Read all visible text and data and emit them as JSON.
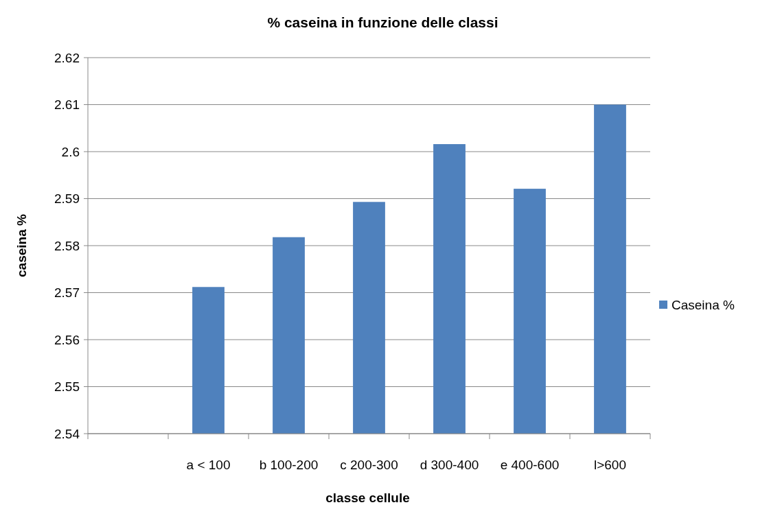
{
  "chart_data": {
    "type": "bar",
    "title": "% caseina in funzione delle classi",
    "xlabel": "classe cellule",
    "ylabel": "caseina %",
    "categories": [
      null,
      "a < 100",
      "b 100-200",
      "c 200-300",
      "d 300-400",
      "e 400-600",
      "l>600"
    ],
    "series": [
      {
        "name": "Caseina %",
        "color": "#4f81bd",
        "values": [
          null,
          2.5712,
          2.5818,
          2.5893,
          2.6016,
          2.5921,
          2.61
        ]
      }
    ],
    "ylim": [
      2.54,
      2.62
    ],
    "yticks": [
      2.54,
      2.55,
      2.56,
      2.57,
      2.58,
      2.59,
      2.6,
      2.61,
      2.62
    ],
    "grid": "y",
    "legend": "right"
  }
}
